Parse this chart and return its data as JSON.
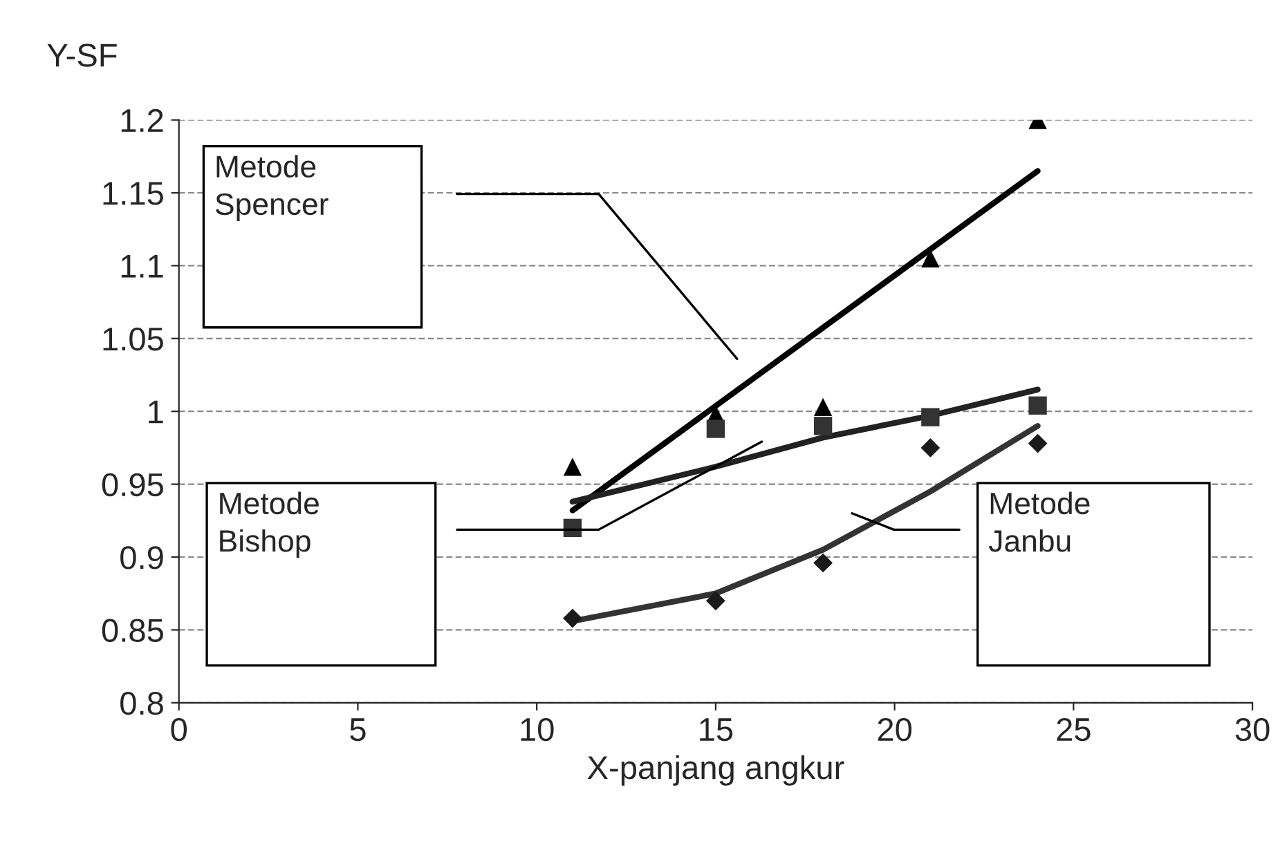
{
  "chart_data": {
    "type": "scatter",
    "xlabel": "X-panjang angkur",
    "ylabel": "Y-SF",
    "xlim": [
      0,
      30
    ],
    "xticks": [
      0,
      5,
      10,
      15,
      20,
      25,
      30
    ],
    "ylim": [
      0.8,
      1.2
    ],
    "yticks": [
      0.8,
      0.85,
      0.9,
      0.95,
      1,
      1.05,
      1.1,
      1.15,
      1.2
    ],
    "grid": "y",
    "legend": false,
    "series": [
      {
        "marker": "triangle",
        "color": "#000000",
        "x": [
          11,
          15,
          18,
          21,
          24
        ],
        "values": [
          0.962,
          0.998,
          1.003,
          1.105,
          1.2
        ]
      },
      {
        "marker": "square",
        "color": "#333333",
        "x": [
          11,
          15,
          18,
          21,
          24
        ],
        "values": [
          0.92,
          0.988,
          0.99,
          0.996,
          1.004
        ]
      },
      {
        "marker": "diamond",
        "color": "#1a1a1a",
        "x": [
          11,
          15,
          18,
          21,
          24
        ],
        "values": [
          0.858,
          0.87,
          0.896,
          0.975,
          0.978
        ]
      },
      {
        "type": "line",
        "marker": "none",
        "color": "#000000",
        "x": [
          11,
          24
        ],
        "values": [
          0.932,
          1.165
        ]
      },
      {
        "type": "line",
        "marker": "none",
        "color": "#222222",
        "x": [
          11,
          15,
          18,
          21,
          24
        ],
        "values": [
          0.938,
          0.962,
          0.982,
          0.997,
          1.015
        ]
      },
      {
        "type": "line",
        "marker": "none",
        "color": "#333333",
        "x": [
          11,
          15,
          18,
          21,
          24
        ],
        "values": [
          0.856,
          0.875,
          0.905,
          0.945,
          0.99
        ]
      }
    ],
    "annotations": [
      "Metode\nSpencer",
      "Metode\nBishop",
      "Metode\nJanbu"
    ]
  }
}
